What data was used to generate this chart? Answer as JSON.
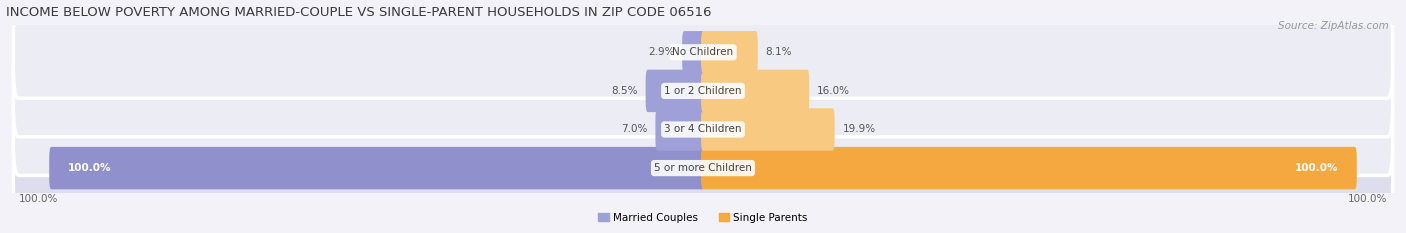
{
  "title": "INCOME BELOW POVERTY AMONG MARRIED-COUPLE VS SINGLE-PARENT HOUSEHOLDS IN ZIP CODE 06516",
  "source": "Source: ZipAtlas.com",
  "categories": [
    "5 or more Children",
    "3 or 4 Children",
    "1 or 2 Children",
    "No Children"
  ],
  "married_values": [
    100.0,
    7.0,
    8.5,
    2.9
  ],
  "single_values": [
    100.0,
    19.9,
    16.0,
    8.1
  ],
  "married_color": "#a0a0d8",
  "married_color_full": "#9090cc",
  "single_color": "#f5a840",
  "single_color_light": "#f8c980",
  "row_bg_normal": "#ececf4",
  "row_bg_highlight": "#dddded",
  "fig_bg": "#f2f2f8",
  "married_label": "Married Couples",
  "single_label": "Single Parents",
  "title_fontsize": 9.5,
  "source_fontsize": 7.5,
  "label_fontsize": 7.5,
  "cat_fontsize": 7.5,
  "figsize": [
    14.06,
    2.33
  ],
  "dpi": 100
}
